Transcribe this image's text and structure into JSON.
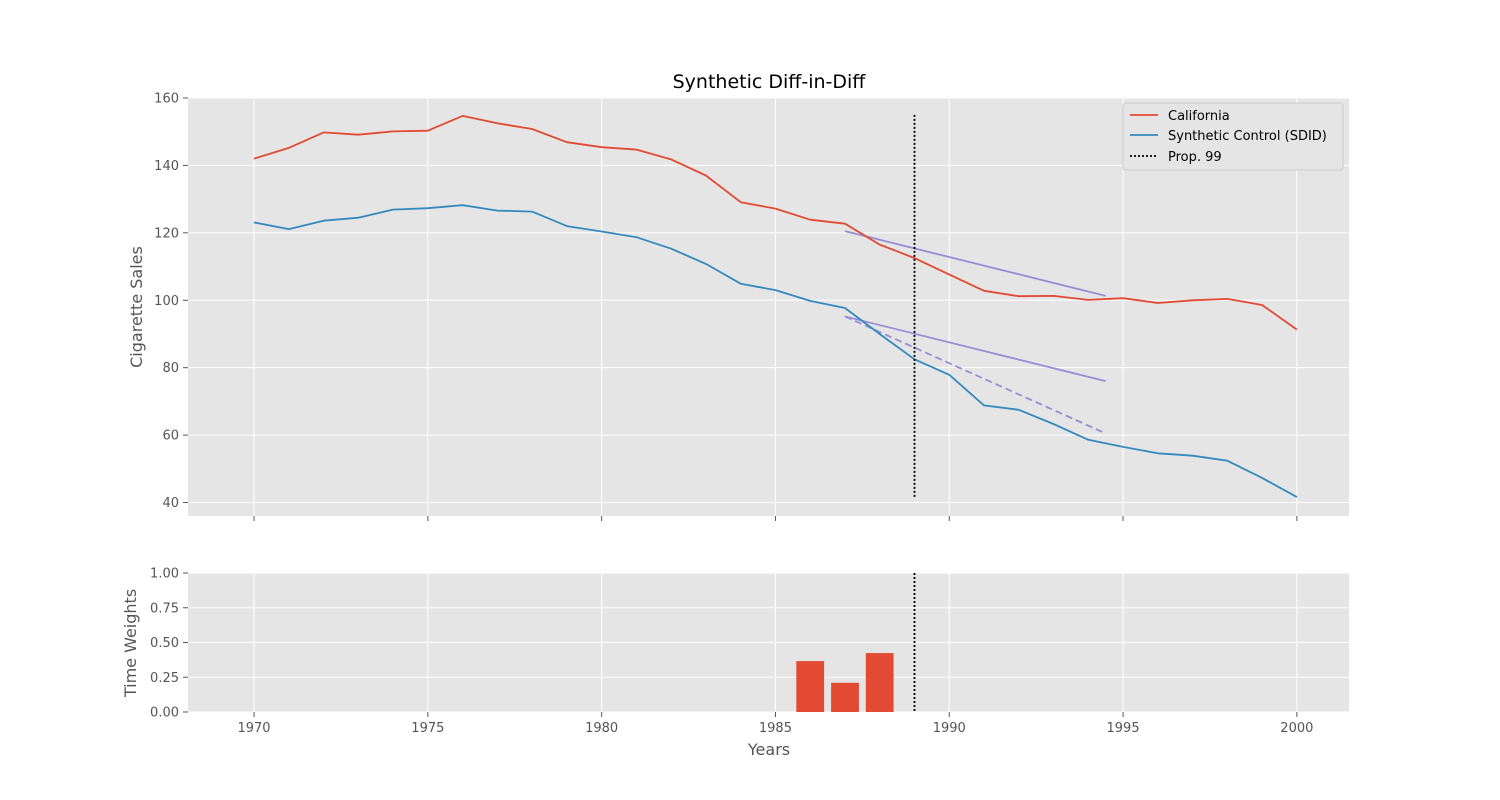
{
  "colors": {
    "treated": "#E24A33",
    "control": "#348ABD",
    "trend": "#988ED5",
    "intervention": "#000000",
    "panel_bg": "#E5E5E5",
    "grid": "#FFFFFF"
  },
  "chart_data": [
    {
      "type": "line",
      "title": "Synthetic Diff-in-Diff",
      "xlabel": "",
      "ylabel": "Cigarette Sales",
      "xlim": [
        1968.1,
        2001.5
      ],
      "ylim": [
        36,
        160
      ],
      "yticks": [
        40,
        60,
        80,
        100,
        120,
        140,
        160
      ],
      "xticks": [
        1970,
        1975,
        1980,
        1985,
        1990,
        1995,
        2000
      ],
      "grid": true,
      "legend_position": "top-right",
      "x": [
        1970,
        1971,
        1972,
        1973,
        1974,
        1975,
        1976,
        1977,
        1978,
        1979,
        1980,
        1981,
        1982,
        1983,
        1984,
        1985,
        1986,
        1987,
        1988,
        1989,
        1990,
        1991,
        1992,
        1993,
        1994,
        1995,
        1996,
        1997,
        1998,
        1999,
        2000
      ],
      "series": [
        {
          "name": "California",
          "color": "#E24A33",
          "values": [
            142.0,
            145.2,
            149.8,
            149.1,
            150.1,
            150.3,
            154.7,
            152.5,
            150.8,
            146.9,
            145.4,
            144.7,
            141.8,
            137.0,
            129.1,
            127.2,
            123.9,
            122.7,
            116.5,
            112.5,
            107.6,
            102.8,
            101.2,
            101.3,
            100.1,
            100.6,
            99.2,
            100.0,
            100.4,
            98.6,
            91.3
          ]
        },
        {
          "name": "Synthetic Control (SDID)",
          "color": "#348ABD",
          "values": [
            123.1,
            121.1,
            123.6,
            124.5,
            126.9,
            127.3,
            128.2,
            126.6,
            126.3,
            122.0,
            120.4,
            118.7,
            115.3,
            110.8,
            104.9,
            103.0,
            99.8,
            97.7,
            90.0,
            82.5,
            77.9,
            68.8,
            67.5,
            63.3,
            58.6,
            56.5,
            54.6,
            53.9,
            52.4,
            47.3,
            41.6
          ]
        }
      ],
      "trend_lines": [
        {
          "style": "solid",
          "x": [
            1987,
            1994.5
          ],
          "y": [
            120.5,
            101.3
          ]
        },
        {
          "style": "solid",
          "x": [
            1987,
            1994.5
          ],
          "y": [
            95.2,
            76.0
          ]
        },
        {
          "style": "dashed",
          "x": [
            1987,
            1994.5
          ],
          "y": [
            95.2,
            60.5
          ]
        }
      ],
      "intervention": {
        "name": "Prop. 99",
        "x": 1989,
        "y_range": [
          41.5,
          155
        ]
      }
    },
    {
      "type": "bar",
      "title": "",
      "xlabel": "Years",
      "ylabel": "Time Weights",
      "xlim": [
        1968.1,
        2001.5
      ],
      "ylim": [
        0,
        1.0
      ],
      "yticks": [
        0.0,
        0.25,
        0.5,
        0.75,
        1.0
      ],
      "ytick_labels": [
        "0.00",
        "0.25",
        "0.50",
        "0.75",
        "1.00"
      ],
      "xticks": [
        1970,
        1975,
        1980,
        1985,
        1990,
        1995,
        2000
      ],
      "grid": true,
      "color": "#E24A33",
      "bar_width_years": 0.8,
      "x": [
        1986,
        1987,
        1988
      ],
      "values": [
        0.366,
        0.21,
        0.424
      ],
      "intervention": {
        "x": 1989,
        "y_range": [
          0,
          1.0
        ]
      }
    }
  ]
}
